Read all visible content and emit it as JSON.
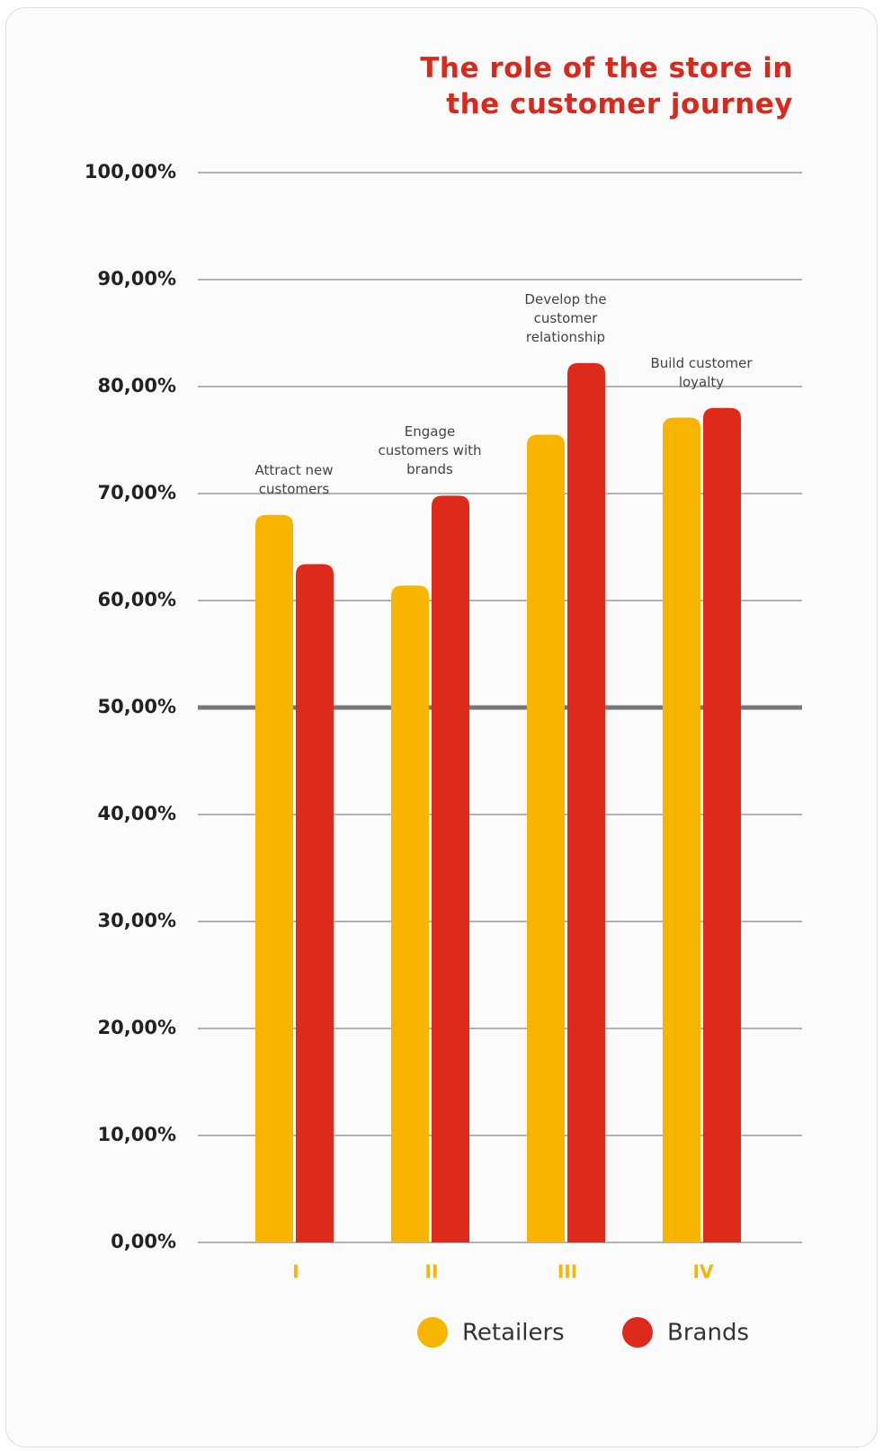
{
  "chart_data": {
    "type": "bar",
    "title": "The role of the store in the customer journey",
    "categories": [
      "I",
      "II",
      "III",
      "IV"
    ],
    "annotations": [
      "Attract new customers",
      "Engage customers with brands",
      "Develop the customer relationship",
      "Build customer loyalty"
    ],
    "series": [
      {
        "name": "Retailers",
        "color": "#f7b500",
        "values": [
          68.0,
          61.4,
          75.5,
          77.1
        ]
      },
      {
        "name": "Brands",
        "color": "#dd2a1b",
        "values": [
          63.4,
          69.8,
          82.2,
          78.0
        ]
      }
    ],
    "ylim": [
      0,
      100
    ],
    "yticks": [
      {
        "value": 0,
        "label": "0,00%"
      },
      {
        "value": 10,
        "label": "10,00%"
      },
      {
        "value": 20,
        "label": "20,00%"
      },
      {
        "value": 30,
        "label": "30,00%"
      },
      {
        "value": 40,
        "label": "40,00%"
      },
      {
        "value": 50,
        "label": "50,00%"
      },
      {
        "value": 60,
        "label": "60,00%"
      },
      {
        "value": 70,
        "label": "70,00%"
      },
      {
        "value": 80,
        "label": "80,00%"
      },
      {
        "value": 90,
        "label": "90,00%"
      },
      {
        "value": 100,
        "label": "100,00%"
      }
    ],
    "reference_line": 50,
    "grid": true,
    "legend": "bottom"
  }
}
